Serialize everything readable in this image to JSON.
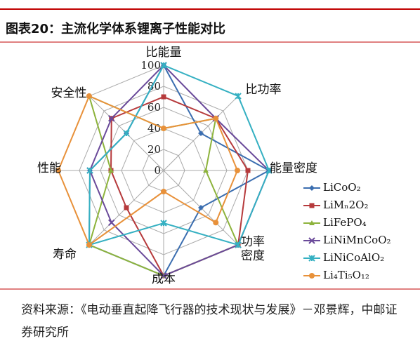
{
  "chart_data": {
    "type": "radar",
    "title": "图表20：主流化学体系锂离子性能对比",
    "categories": [
      "比能量",
      "比功率",
      "能量密度",
      "功率密度",
      "成本",
      "寿命",
      "性能",
      "安全性"
    ],
    "ylim": [
      0,
      100
    ],
    "yticks": [
      0,
      20,
      40,
      60,
      80,
      100
    ],
    "grid": true,
    "series": [
      {
        "name": "LiCoO₂",
        "color": "#3b6eb0",
        "values": [
          100,
          50,
          100,
          50,
          100,
          100,
          70,
          50
        ]
      },
      {
        "name": "LiMₙ2O₂",
        "color": "#b63a3c",
        "values": [
          70,
          70,
          80,
          100,
          100,
          50,
          50,
          70
        ]
      },
      {
        "name": "LiFePO₄",
        "color": "#8db33c",
        "values": [
          40,
          70,
          40,
          100,
          100,
          100,
          50,
          100
        ]
      },
      {
        "name": "LiNiMnCoO₂",
        "color": "#6a4a9a",
        "values": [
          100,
          70,
          100,
          100,
          100,
          70,
          70,
          70
        ]
      },
      {
        "name": "LiNiCoAlO₂",
        "color": "#35b0c2",
        "values": [
          100,
          100,
          100,
          100,
          50,
          100,
          70,
          50
        ]
      },
      {
        "name": "Li₄Ti₅O₁₂",
        "color": "#e8913a",
        "values": [
          40,
          70,
          70,
          70,
          20,
          100,
          100,
          100
        ]
      }
    ],
    "source": "资料来源：《电动垂直起降飞行器的技术现状与发展》－邓景辉，中邮证券研究所"
  }
}
